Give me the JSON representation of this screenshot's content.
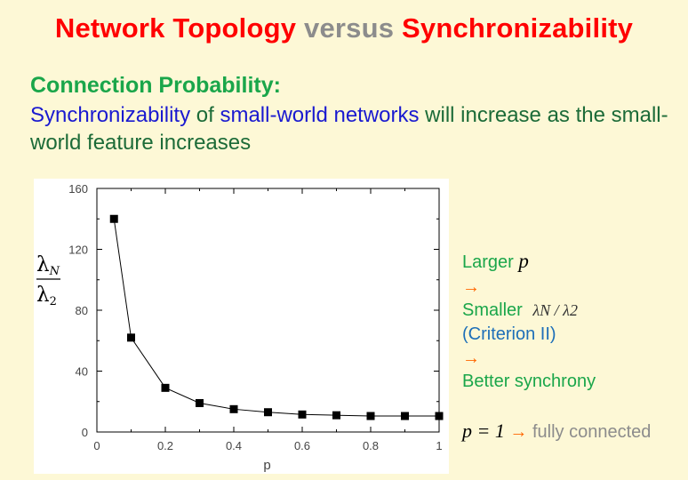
{
  "slide": {
    "title_part1": "Network Topology",
    "title_part2": "versus",
    "title_part3": "Synchronizability",
    "subhead": "Connection Probability:",
    "desc_blue1": "Synchronizability",
    "desc_text1": " of ",
    "desc_blue2": "small-world networks",
    "desc_text2": " will increase as the small-world feature increases"
  },
  "sidebar": {
    "larger": "Larger",
    "p_symbol": "p",
    "arrow": "→",
    "smaller": "Smaller",
    "ratio_symbol": "λN / λ2",
    "criterion": "(Criterion II)",
    "better": "Better synchrony",
    "p_eq": "p = 1",
    "fully_connected": "fully connected"
  },
  "chart_data": {
    "type": "line",
    "xlabel": "p",
    "ylabel": "λN / λ2",
    "xlim": [
      0,
      1
    ],
    "ylim": [
      0,
      160
    ],
    "xticks": [
      "0",
      "0.2",
      "0.4",
      "0.6",
      "0.8",
      "1"
    ],
    "yticks": [
      "0",
      "40",
      "80",
      "120",
      "160"
    ],
    "series": [
      {
        "x": [
          0.05,
          0.1,
          0.2,
          0.3,
          0.4,
          0.5,
          0.6,
          0.7,
          0.8,
          0.9,
          1.0
        ],
        "y": [
          140,
          62,
          29,
          19,
          15,
          13,
          11.5,
          11,
          10.5,
          10.5,
          10.5
        ]
      }
    ],
    "marker": "square",
    "line_color": "#000000",
    "grid": false
  }
}
